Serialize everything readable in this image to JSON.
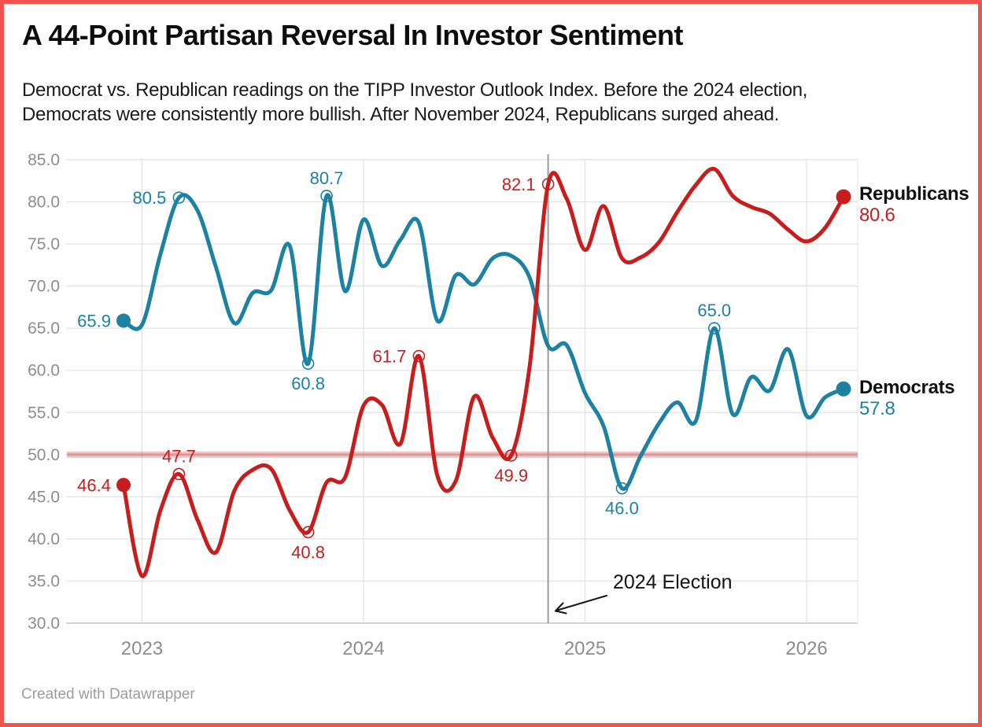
{
  "frame": {
    "border_color": "#f0544c",
    "background": "#ffffff"
  },
  "header": {
    "title": "A 44-Point Partisan Reversal In Investor Sentiment",
    "subtitle_line1": "Democrat vs. Republican readings on the TIPP Investor Outlook Index. Before the 2024 election,",
    "subtitle_line2": "Democrats were consistently more bullish. After November 2024, Republicans surged ahead."
  },
  "legend": [
    {
      "label": "Republicans",
      "value": "80.6",
      "color": "#c71e1d"
    },
    {
      "label": "Democrats",
      "value": "57.8",
      "color": "#1d81a2"
    }
  ],
  "footer": {
    "credit": "Created with Datawrapper"
  },
  "chart_data": {
    "type": "line",
    "title": "A 44-Point Partisan Reversal In Investor Sentiment",
    "xlabel": "",
    "ylabel": "TIPP Investor Outlook Index",
    "x_months": [
      "2022-12",
      "2023-01",
      "2023-02",
      "2023-03",
      "2023-04",
      "2023-05",
      "2023-06",
      "2023-07",
      "2023-08",
      "2023-09",
      "2023-10",
      "2023-11",
      "2023-12",
      "2024-01",
      "2024-02",
      "2024-03",
      "2024-04",
      "2024-05",
      "2024-06",
      "2024-07",
      "2024-08",
      "2024-09",
      "2024-10",
      "2024-11",
      "2024-12",
      "2025-01",
      "2025-02",
      "2025-03",
      "2025-04",
      "2025-05",
      "2025-06",
      "2025-07",
      "2025-08",
      "2025-09",
      "2025-10",
      "2025-11",
      "2025-12",
      "2026-01",
      "2026-02",
      "2026-03"
    ],
    "series": [
      {
        "name": "Republicans",
        "color": "#c71e1d",
        "values": [
          46.4,
          35.6,
          43.4,
          47.7,
          42.3,
          38.4,
          45.7,
          48.2,
          48.3,
          43.4,
          40.8,
          46.7,
          47.3,
          55.8,
          55.9,
          51.3,
          61.7,
          47.5,
          46.9,
          56.9,
          52.0,
          49.9,
          60.5,
          82.1,
          80.4,
          74.3,
          79.5,
          73.3,
          73.4,
          75.2,
          78.8,
          82.0,
          83.9,
          80.7,
          79.4,
          78.6,
          76.7,
          75.3,
          76.9,
          80.6
        ]
      },
      {
        "name": "Democrats",
        "color": "#1d81a2",
        "values": [
          65.9,
          65.4,
          73.8,
          80.5,
          79.0,
          72.3,
          65.6,
          69.2,
          69.5,
          74.8,
          60.8,
          80.7,
          69.4,
          77.9,
          72.4,
          75.5,
          77.5,
          65.9,
          71.3,
          70.2,
          73.3,
          73.6,
          71.0,
          62.9,
          63.0,
          57.3,
          53.4,
          46.0,
          49.8,
          53.7,
          56.2,
          54.0,
          65.0,
          54.8,
          59.2,
          57.6,
          62.5,
          54.6,
          56.8,
          57.8
        ]
      }
    ],
    "ylim": [
      30,
      85
    ],
    "y_tick_labels": [
      "85.0",
      "80.0",
      "75.0",
      "70.0",
      "65.0",
      "60.0",
      "55.0",
      "50.0",
      "45.0",
      "40.0",
      "35.0",
      "30.0"
    ],
    "x_ticks": [
      {
        "label": "2023",
        "month_index": 1
      },
      {
        "label": "2024",
        "month_index": 13
      },
      {
        "label": "2025",
        "month_index": 25
      },
      {
        "label": "2026",
        "month_index": 37
      }
    ],
    "reference_line": {
      "value": 50.0,
      "color": "#c93b3b"
    },
    "event_marker": {
      "label": "2024 Election",
      "month_index": 23,
      "line_color": "#9b9b9b"
    },
    "point_labels": [
      {
        "series": "Republicans",
        "month_index": 0,
        "text": "46.4",
        "placement": "left",
        "open_circle": false
      },
      {
        "series": "Republicans",
        "month_index": 3,
        "text": "47.7",
        "placement": "above",
        "open_circle": true
      },
      {
        "series": "Republicans",
        "month_index": 10,
        "text": "40.8",
        "placement": "below",
        "open_circle": true
      },
      {
        "series": "Republicans",
        "month_index": 16,
        "text": "61.7",
        "placement": "left",
        "open_circle": true
      },
      {
        "series": "Republicans",
        "month_index": 21,
        "text": "49.9",
        "placement": "below",
        "open_circle": true
      },
      {
        "series": "Republicans",
        "month_index": 23,
        "text": "82.1",
        "placement": "left",
        "open_circle": true
      },
      {
        "series": "Democrats",
        "month_index": 0,
        "text": "65.9",
        "placement": "left",
        "open_circle": false
      },
      {
        "series": "Democrats",
        "month_index": 3,
        "text": "80.5",
        "placement": "left",
        "open_circle": true
      },
      {
        "series": "Democrats",
        "month_index": 10,
        "text": "60.8",
        "placement": "below",
        "open_circle": true
      },
      {
        "series": "Democrats",
        "month_index": 11,
        "text": "80.7",
        "placement": "above",
        "open_circle": true
      },
      {
        "series": "Democrats",
        "month_index": 27,
        "text": "46.0",
        "placement": "below",
        "open_circle": true
      },
      {
        "series": "Democrats",
        "month_index": 32,
        "text": "65.0",
        "placement": "above",
        "open_circle": true
      }
    ],
    "grid": true,
    "legend_position": "right-end"
  }
}
